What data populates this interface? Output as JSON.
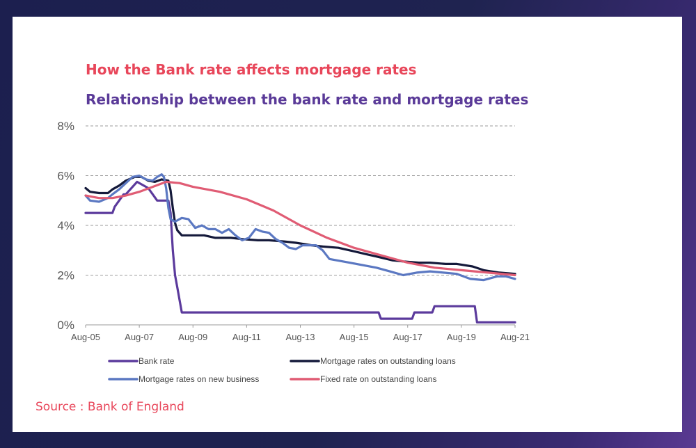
{
  "header": {
    "title": "How the Bank rate affects mortgage rates",
    "subtitle": "Relationship between the bank rate and mortgage rates"
  },
  "footer": {
    "source": "Source : Bank of England"
  },
  "chart_data": {
    "type": "line",
    "title": "",
    "xlabel": "",
    "ylabel": "",
    "x_tick_labels": [
      "Aug-05",
      "Aug-07",
      "Aug-09",
      "Aug-11",
      "Aug-13",
      "Aug-15",
      "Aug-17",
      "Aug-19",
      "Aug-21"
    ],
    "y_tick_labels": [
      "0%",
      "2%",
      "4%",
      "6%",
      "8%"
    ],
    "ylim": [
      0,
      8
    ],
    "xlim": [
      "2005-08",
      "2021-08"
    ],
    "grid": "horizontal dashed",
    "legend_position": "bottom",
    "series": [
      {
        "name": "Bank rate",
        "color": "#5b3a9c",
        "points": [
          [
            "2005-08",
            4.5
          ],
          [
            "2006-08",
            4.5
          ],
          [
            "2006-09",
            4.75
          ],
          [
            "2006-11",
            5.0
          ],
          [
            "2007-01",
            5.25
          ],
          [
            "2007-02",
            5.25
          ],
          [
            "2007-07",
            5.75
          ],
          [
            "2007-12",
            5.5
          ],
          [
            "2008-02",
            5.25
          ],
          [
            "2008-04",
            5.0
          ],
          [
            "2008-09",
            5.0
          ],
          [
            "2008-10",
            4.5
          ],
          [
            "2008-11",
            3.0
          ],
          [
            "2008-12",
            2.0
          ],
          [
            "2009-01",
            1.5
          ],
          [
            "2009-02",
            1.0
          ],
          [
            "2009-03",
            0.5
          ],
          [
            "2016-07",
            0.5
          ],
          [
            "2016-08",
            0.25
          ],
          [
            "2017-10",
            0.25
          ],
          [
            "2017-11",
            0.5
          ],
          [
            "2018-07",
            0.5
          ],
          [
            "2018-08",
            0.75
          ],
          [
            "2020-02",
            0.75
          ],
          [
            "2020-03",
            0.1
          ],
          [
            "2021-08",
            0.1
          ]
        ]
      },
      {
        "name": "Mortgage rates on outstanding loans",
        "color": "#14193a",
        "points": [
          [
            "2005-08",
            5.5
          ],
          [
            "2005-10",
            5.35
          ],
          [
            "2006-02",
            5.3
          ],
          [
            "2006-06",
            5.3
          ],
          [
            "2006-08",
            5.45
          ],
          [
            "2006-11",
            5.6
          ],
          [
            "2007-02",
            5.8
          ],
          [
            "2007-06",
            5.95
          ],
          [
            "2007-09",
            5.95
          ],
          [
            "2007-12",
            5.8
          ],
          [
            "2008-03",
            5.75
          ],
          [
            "2008-06",
            5.85
          ],
          [
            "2008-09",
            5.8
          ],
          [
            "2008-10",
            5.4
          ],
          [
            "2008-11",
            4.7
          ],
          [
            "2008-12",
            4.1
          ],
          [
            "2009-01",
            3.8
          ],
          [
            "2009-03",
            3.6
          ],
          [
            "2010-01",
            3.6
          ],
          [
            "2010-06",
            3.5
          ],
          [
            "2011-01",
            3.5
          ],
          [
            "2011-06",
            3.45
          ],
          [
            "2012-01",
            3.4
          ],
          [
            "2012-06",
            3.4
          ],
          [
            "2013-01",
            3.35
          ],
          [
            "2013-06",
            3.3
          ],
          [
            "2014-01",
            3.2
          ],
          [
            "2014-06",
            3.15
          ],
          [
            "2015-01",
            3.1
          ],
          [
            "2015-06",
            3.0
          ],
          [
            "2016-01",
            2.85
          ],
          [
            "2016-06",
            2.75
          ],
          [
            "2017-01",
            2.6
          ],
          [
            "2017-06",
            2.55
          ],
          [
            "2018-01",
            2.5
          ],
          [
            "2018-06",
            2.5
          ],
          [
            "2019-01",
            2.45
          ],
          [
            "2019-06",
            2.45
          ],
          [
            "2020-01",
            2.35
          ],
          [
            "2020-06",
            2.2
          ],
          [
            "2021-01",
            2.1
          ],
          [
            "2021-08",
            2.05
          ]
        ]
      },
      {
        "name": "Mortgage rates on new business",
        "color": "#5b78c2",
        "points": [
          [
            "2005-08",
            5.2
          ],
          [
            "2005-10",
            5.0
          ],
          [
            "2006-02",
            4.95
          ],
          [
            "2006-06",
            5.1
          ],
          [
            "2006-08",
            5.25
          ],
          [
            "2006-11",
            5.45
          ],
          [
            "2007-02",
            5.7
          ],
          [
            "2007-05",
            5.95
          ],
          [
            "2007-08",
            6.0
          ],
          [
            "2007-11",
            5.85
          ],
          [
            "2008-02",
            5.8
          ],
          [
            "2008-04",
            5.95
          ],
          [
            "2008-06",
            6.05
          ],
          [
            "2008-07",
            5.95
          ],
          [
            "2008-08",
            5.5
          ],
          [
            "2008-09",
            4.7
          ],
          [
            "2008-10",
            4.25
          ],
          [
            "2008-12",
            4.15
          ],
          [
            "2009-03",
            4.3
          ],
          [
            "2009-06",
            4.25
          ],
          [
            "2009-09",
            3.9
          ],
          [
            "2009-12",
            4.0
          ],
          [
            "2010-03",
            3.85
          ],
          [
            "2010-06",
            3.85
          ],
          [
            "2010-09",
            3.7
          ],
          [
            "2010-12",
            3.85
          ],
          [
            "2011-03",
            3.6
          ],
          [
            "2011-06",
            3.4
          ],
          [
            "2011-09",
            3.5
          ],
          [
            "2011-12",
            3.85
          ],
          [
            "2012-03",
            3.75
          ],
          [
            "2012-06",
            3.7
          ],
          [
            "2012-09",
            3.45
          ],
          [
            "2012-12",
            3.3
          ],
          [
            "2013-03",
            3.1
          ],
          [
            "2013-06",
            3.05
          ],
          [
            "2013-09",
            3.2
          ],
          [
            "2013-12",
            3.2
          ],
          [
            "2014-03",
            3.2
          ],
          [
            "2014-06",
            3.0
          ],
          [
            "2014-09",
            2.65
          ],
          [
            "2014-12",
            2.6
          ],
          [
            "2015-06",
            2.5
          ],
          [
            "2015-12",
            2.4
          ],
          [
            "2016-06",
            2.3
          ],
          [
            "2016-12",
            2.15
          ],
          [
            "2017-06",
            2.0
          ],
          [
            "2017-12",
            2.1
          ],
          [
            "2018-06",
            2.15
          ],
          [
            "2018-12",
            2.1
          ],
          [
            "2019-06",
            2.05
          ],
          [
            "2019-12",
            1.85
          ],
          [
            "2020-06",
            1.8
          ],
          [
            "2020-12",
            1.95
          ],
          [
            "2021-04",
            1.95
          ],
          [
            "2021-08",
            1.85
          ]
        ]
      },
      {
        "name": "Fixed rate on outstanding loans",
        "color": "#e05c74",
        "points": [
          [
            "2005-08",
            5.2
          ],
          [
            "2006-02",
            5.1
          ],
          [
            "2006-08",
            5.1
          ],
          [
            "2007-02",
            5.2
          ],
          [
            "2007-08",
            5.35
          ],
          [
            "2008-02",
            5.55
          ],
          [
            "2008-08",
            5.75
          ],
          [
            "2009-02",
            5.7
          ],
          [
            "2009-08",
            5.55
          ],
          [
            "2010-08",
            5.35
          ],
          [
            "2011-08",
            5.05
          ],
          [
            "2012-08",
            4.6
          ],
          [
            "2013-08",
            4.0
          ],
          [
            "2014-08",
            3.5
          ],
          [
            "2015-08",
            3.1
          ],
          [
            "2016-08",
            2.8
          ],
          [
            "2017-08",
            2.5
          ],
          [
            "2018-08",
            2.3
          ],
          [
            "2019-08",
            2.2
          ],
          [
            "2020-08",
            2.1
          ],
          [
            "2021-08",
            2.0
          ]
        ]
      }
    ]
  }
}
